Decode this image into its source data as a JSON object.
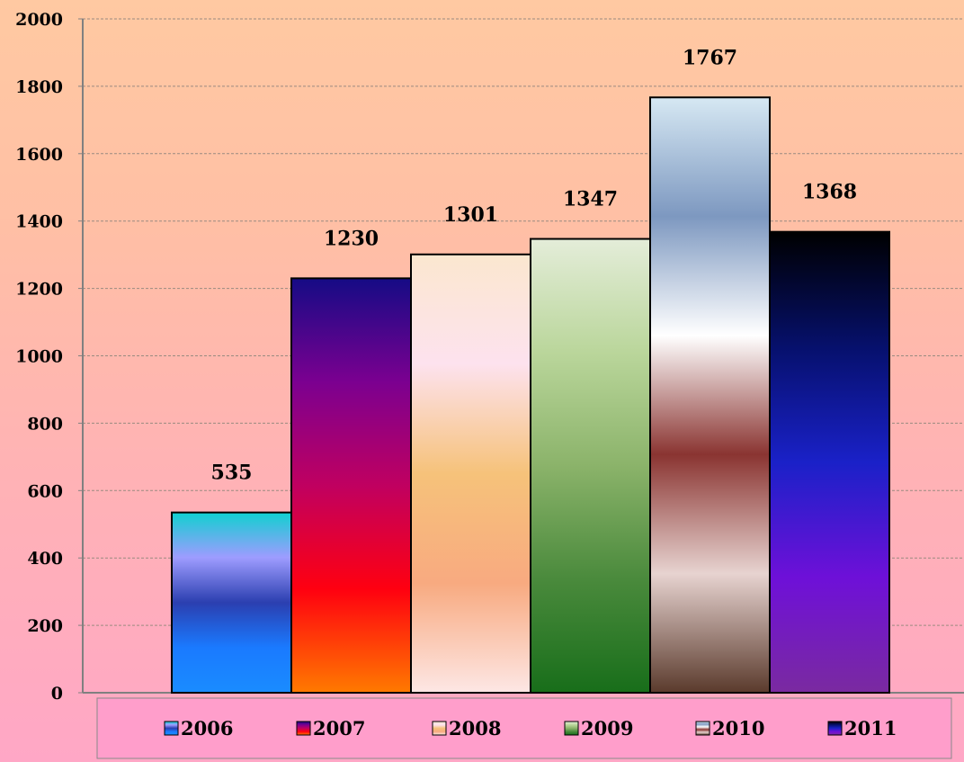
{
  "chart_data": {
    "type": "bar",
    "categories": [
      "2006",
      "2007",
      "2008",
      "2009",
      "2010",
      "2011"
    ],
    "values": [
      535,
      1230,
      1301,
      1347,
      1767,
      1368
    ],
    "title": "",
    "xlabel": "",
    "ylabel": "",
    "ylim": [
      0,
      2000
    ],
    "y_ticks": [
      "0",
      "200",
      "400",
      "600",
      "800",
      "1000",
      "1200",
      "1400",
      "1600",
      "1800",
      "2000"
    ],
    "grid": true,
    "legend_position": "bottom",
    "legend": [
      "2006",
      "2007",
      "2008",
      "2009",
      "2010",
      "2011"
    ],
    "data_labels": [
      "535",
      "1230",
      "1301",
      "1347",
      "1767",
      "1368"
    ],
    "colors": {
      "2006": [
        "#10d0d0",
        "#9e9cff",
        "#2b3fb0",
        "#1a7aff",
        "#1a8cff"
      ],
      "2007": [
        "#150b85",
        "#7b0090",
        "#c00060",
        "#ff0010",
        "#ff7a00"
      ],
      "2008": [
        "#fbe7cf",
        "#fde2ee",
        "#f6c27a",
        "#f8aa80",
        "#fde7e5"
      ],
      "2009": [
        "#e4edd9",
        "#bad69b",
        "#8bb36a",
        "#4a8a3c",
        "#186e1a"
      ],
      "2010": [
        "#d6e8f3",
        "#7d98c0",
        "#ffffff",
        "#8a3431",
        "#e7d3d0",
        "#5a3a2c"
      ],
      "2011": [
        "#000000",
        "#06106c",
        "#1a21c8",
        "#6e10d8",
        "#7a2aa0"
      ]
    }
  }
}
